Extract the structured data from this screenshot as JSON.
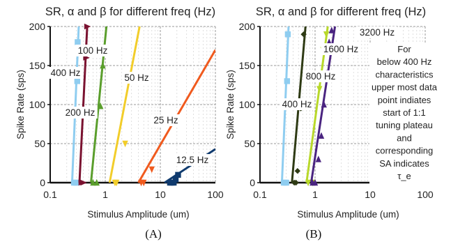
{
  "chart_data": [
    {
      "type": "line",
      "title": "SR, α and β for different freq (Hz)",
      "xlabel": "Stimulus Amplitude (um)",
      "ylabel": "Spike Rate (sps)",
      "caption": "(A)",
      "xscale": "log",
      "xlim": [
        0.1,
        100
      ],
      "ylim": [
        0,
        200
      ],
      "xticks": [
        0.1,
        1,
        10,
        100
      ],
      "xtick_labels": [
        "0.1",
        "1",
        "10",
        "100"
      ],
      "yticks": [
        0,
        50,
        100,
        150,
        200
      ],
      "ytick_labels": [
        "0",
        "50",
        "100",
        "150",
        "200"
      ],
      "grid": true,
      "series": [
        {
          "name": "400 Hz",
          "color": "#8fcdf0",
          "marker": "square",
          "line": [
            [
              0.25,
              0
            ],
            [
              0.33,
              200
            ]
          ],
          "points": [
            [
              0.27,
              0
            ],
            [
              0.285,
              0
            ],
            [
              0.3,
              0
            ],
            [
              0.31,
              130
            ],
            [
              0.315,
              180
            ]
          ]
        },
        {
          "name": "200 Hz",
          "color": "#7a1230",
          "marker": "triangle-right",
          "line": [
            [
              0.34,
              0
            ],
            [
              0.47,
              200
            ]
          ],
          "points": [
            [
              0.37,
              0
            ],
            [
              0.4,
              0
            ],
            [
              0.42,
              90
            ],
            [
              0.45,
              160
            ],
            [
              0.47,
              200
            ]
          ]
        },
        {
          "name": "100 Hz",
          "color": "#5a9e2c",
          "marker": "triangle-up",
          "line": [
            [
              0.55,
              0
            ],
            [
              1.05,
              200
            ]
          ],
          "points": [
            [
              0.6,
              0
            ],
            [
              0.7,
              0
            ],
            [
              0.82,
              98
            ],
            [
              0.9,
              150
            ]
          ]
        },
        {
          "name": "50 Hz",
          "color": "#f2cd2a",
          "marker": "triangle-down",
          "line": [
            [
              1.2,
              0
            ],
            [
              4.2,
              200
            ]
          ],
          "points": [
            [
              1.5,
              0
            ],
            [
              1.6,
              0
            ],
            [
              2.3,
              50
            ]
          ]
        },
        {
          "name": "25 Hz",
          "color": "#f05a1e",
          "marker": "triangle-down",
          "line": [
            [
              4.0,
              0
            ],
            [
              100,
              170
            ]
          ],
          "points": [
            [
              4.5,
              0
            ],
            [
              5.0,
              0
            ],
            [
              7.0,
              17
            ]
          ]
        },
        {
          "name": "12.5 Hz",
          "color": "#0f3a6e",
          "marker": "square",
          "line": [
            [
              12,
              0
            ],
            [
              100,
              43
            ]
          ],
          "points": [
            [
              15,
              0
            ],
            [
              16,
              0
            ],
            [
              17.5,
              0
            ],
            [
              19,
              4
            ],
            [
              21,
              10
            ]
          ]
        }
      ],
      "series_labels": [
        "400 Hz",
        "200 Hz",
        "100 Hz",
        "50 Hz",
        "25 Hz",
        "12.5 Hz"
      ]
    },
    {
      "type": "line",
      "title": "SR, α and β for different freq (Hz)",
      "xlabel": "Stimulus Amplitude (um)",
      "ylabel": "Spike Rate (sps)",
      "caption": "(B)",
      "xscale": "log",
      "xlim": [
        0.1,
        100
      ],
      "ylim": [
        0,
        200
      ],
      "xticks": [
        0.1,
        1,
        10,
        100
      ],
      "xtick_labels": [
        "0.1",
        "1",
        "10",
        "100"
      ],
      "yticks": [
        0,
        50,
        100,
        150,
        200
      ],
      "ytick_labels": [
        "0",
        "50",
        "100",
        "150",
        "200"
      ],
      "grid": true,
      "annotation": [
        "For",
        "below 400 Hz",
        "characteristics",
        "upper most data",
        "point indiates",
        "start of 1:1",
        "tuning plateau",
        "and",
        "corresponding",
        "SA indicates",
        "τ_e"
      ],
      "series": [
        {
          "name": "400 Hz",
          "color": "#8fcdf0",
          "marker": "square",
          "line": [
            [
              0.25,
              0
            ],
            [
              0.33,
              200
            ]
          ],
          "points": [
            [
              0.27,
              0
            ],
            [
              0.285,
              0
            ],
            [
              0.3,
              0
            ],
            [
              0.31,
              130
            ],
            [
              0.32,
              190
            ]
          ]
        },
        {
          "name": "800 Hz",
          "color": "#2e3a14",
          "marker": "diamond",
          "line": [
            [
              0.38,
              0
            ],
            [
              0.67,
              200
            ]
          ],
          "points": [
            [
              0.42,
              0
            ],
            [
              0.45,
              0
            ],
            [
              0.48,
              15
            ],
            [
              0.55,
              95
            ],
            [
              0.62,
              190
            ]
          ]
        },
        {
          "name": "1600 Hz",
          "color": "#b8d82a",
          "marker": "triangle-down",
          "line": [
            [
              0.7,
              0
            ],
            [
              1.7,
              200
            ]
          ],
          "points": [
            [
              0.75,
              0
            ],
            [
              0.9,
              0
            ],
            [
              1.2,
              120
            ],
            [
              1.4,
              170
            ],
            [
              1.6,
              190
            ]
          ]
        },
        {
          "name": "3200 Hz",
          "color": "#4a2480",
          "marker": "triangle-up",
          "line": [
            [
              0.85,
              0
            ],
            [
              2.3,
              200
            ]
          ],
          "points": [
            [
              0.9,
              0
            ],
            [
              1.0,
              0
            ],
            [
              1.15,
              30
            ],
            [
              1.3,
              60
            ],
            [
              1.45,
              100
            ],
            [
              1.6,
              140
            ],
            [
              1.8,
              180
            ],
            [
              2.0,
              195
            ]
          ]
        }
      ],
      "series_labels": [
        "400 Hz",
        "800 Hz",
        "1600 Hz",
        "3200 Hz"
      ]
    }
  ]
}
